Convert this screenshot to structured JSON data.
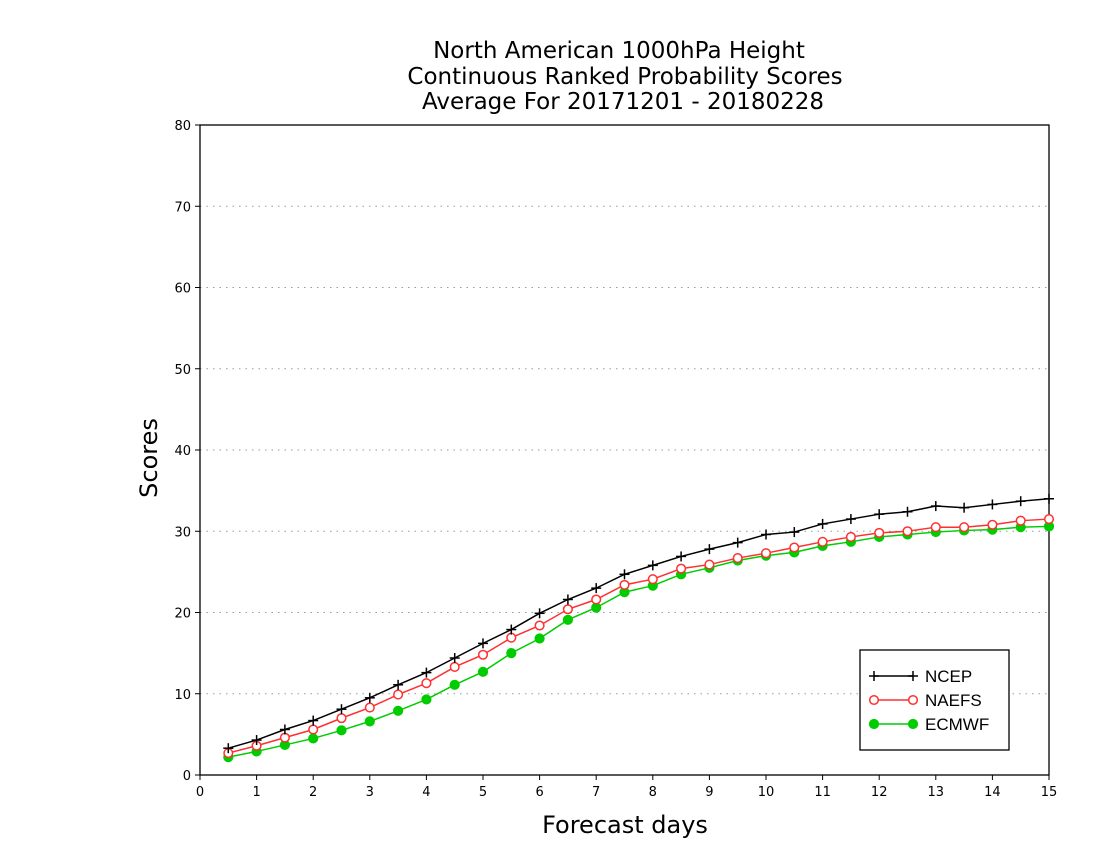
{
  "chart_data": {
    "type": "line",
    "title": [
      "North American 1000hPa Height",
      "Continuous Ranked Probability Scores",
      "Average For 20171201 - 20180228"
    ],
    "xlabel": "Forecast days",
    "ylabel": "Scores",
    "xlim": [
      0,
      15
    ],
    "ylim": [
      0,
      80
    ],
    "xticks": [
      0,
      1,
      2,
      3,
      4,
      5,
      6,
      7,
      8,
      9,
      10,
      11,
      12,
      13,
      14,
      15
    ],
    "yticks": [
      0,
      10,
      20,
      30,
      40,
      50,
      60,
      70,
      80
    ],
    "grid": "horizontal dotted",
    "legend_position": "bottom-right",
    "x": [
      0.5,
      1,
      1.5,
      2,
      2.5,
      3,
      3.5,
      4,
      4.5,
      5,
      5.5,
      6,
      6.5,
      7,
      7.5,
      8,
      8.5,
      9,
      9.5,
      10,
      10.5,
      11,
      11.5,
      12,
      12.5,
      13,
      13.5,
      14,
      14.5,
      15
    ],
    "series": [
      {
        "name": "NCEP",
        "color": "#000000",
        "marker": "plus",
        "values": [
          3.3,
          4.3,
          5.6,
          6.7,
          8.1,
          9.5,
          11.1,
          12.6,
          14.4,
          16.2,
          17.9,
          19.9,
          21.6,
          23.0,
          24.7,
          25.8,
          26.9,
          27.8,
          28.6,
          29.6,
          29.9,
          30.9,
          31.5,
          32.1,
          32.4,
          33.1,
          32.9,
          33.3,
          33.7,
          34.0
        ]
      },
      {
        "name": "NAEFS",
        "color": "#ff3030",
        "marker": "open-circle",
        "values": [
          2.7,
          3.6,
          4.6,
          5.6,
          7.0,
          8.3,
          9.9,
          11.3,
          13.3,
          14.8,
          16.9,
          18.4,
          20.4,
          21.6,
          23.4,
          24.1,
          25.4,
          25.9,
          26.7,
          27.3,
          28.0,
          28.7,
          29.3,
          29.8,
          30.0,
          30.5,
          30.5,
          30.8,
          31.3,
          31.5
        ]
      },
      {
        "name": "ECMWF",
        "color": "#00cc00",
        "marker": "filled-circle",
        "values": [
          2.2,
          2.9,
          3.7,
          4.5,
          5.5,
          6.6,
          7.9,
          9.3,
          11.1,
          12.7,
          15.0,
          16.8,
          19.1,
          20.6,
          22.5,
          23.3,
          24.7,
          25.5,
          26.4,
          27.0,
          27.4,
          28.2,
          28.7,
          29.3,
          29.6,
          29.9,
          30.1,
          30.2,
          30.5,
          30.6
        ]
      }
    ]
  }
}
